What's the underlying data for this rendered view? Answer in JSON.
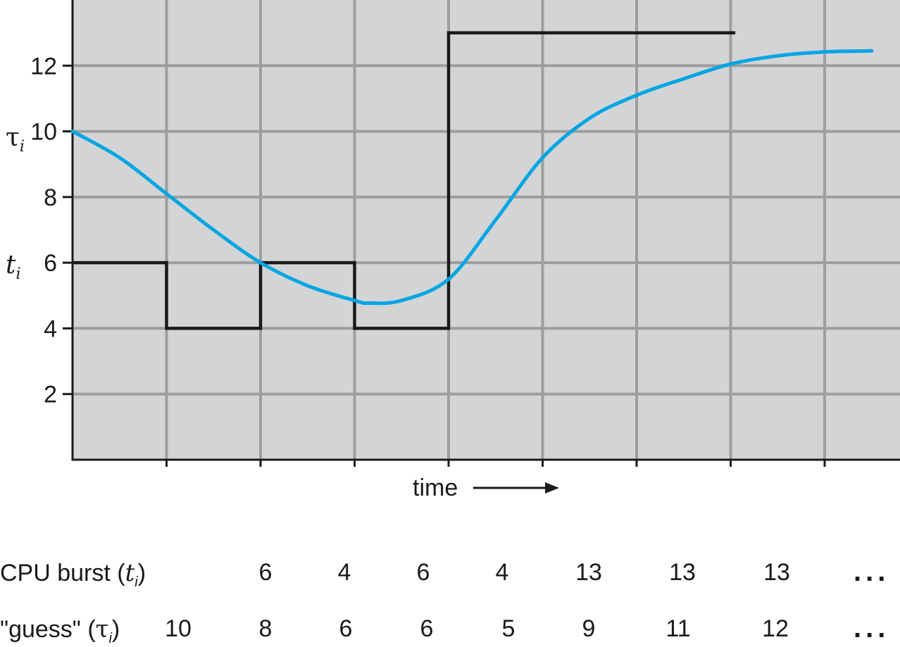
{
  "chart_data": {
    "type": "line",
    "title": "",
    "xlabel": "time",
    "ylim": [
      0,
      14
    ],
    "yticks": [
      2,
      4,
      6,
      8,
      10,
      12
    ],
    "x_intervals": 8,
    "grid": true,
    "y_axis_labels": {
      "tau": "τ",
      "tau_sub": "i",
      "t": "t",
      "t_sub": "i"
    },
    "series": [
      {
        "key": "burst",
        "values": [
          6,
          4,
          6,
          4,
          13,
          13,
          13,
          13
        ],
        "color": "#1a1a1a"
      },
      {
        "key": "guess",
        "values": [
          10,
          8,
          6,
          6,
          5,
          9,
          11,
          12
        ],
        "color": "#00a5e3"
      }
    ],
    "curve_points": [
      [
        0,
        10
      ],
      [
        0.5,
        9.2
      ],
      [
        1,
        8.1
      ],
      [
        1.5,
        7.0
      ],
      [
        2,
        6.0
      ],
      [
        2.5,
        5.3
      ],
      [
        3,
        4.85
      ],
      [
        3.15,
        4.77
      ],
      [
        3.5,
        4.85
      ],
      [
        4,
        5.5
      ],
      [
        4.5,
        7.3
      ],
      [
        5,
        9.2
      ],
      [
        5.5,
        10.4
      ],
      [
        6,
        11.1
      ],
      [
        6.5,
        11.6
      ],
      [
        7,
        12.05
      ],
      [
        7.5,
        12.3
      ],
      [
        8,
        12.42
      ],
      [
        8.5,
        12.45
      ]
    ]
  },
  "table": {
    "burst_label_text": "CPU burst (",
    "burst_label_sym": "t",
    "burst_label_sub": "i",
    "burst_label_end": ")",
    "guess_label_text": "\"guess\" (",
    "guess_label_sym": "τ",
    "guess_label_sub": "i",
    "guess_label_end": ")",
    "burst_values": [
      "6",
      "4",
      "6",
      "4",
      "13",
      "13",
      "13"
    ],
    "guess_values": [
      "10",
      "8",
      "6",
      "6",
      "5",
      "9",
      "11",
      "12"
    ],
    "ellipsis": "..."
  }
}
